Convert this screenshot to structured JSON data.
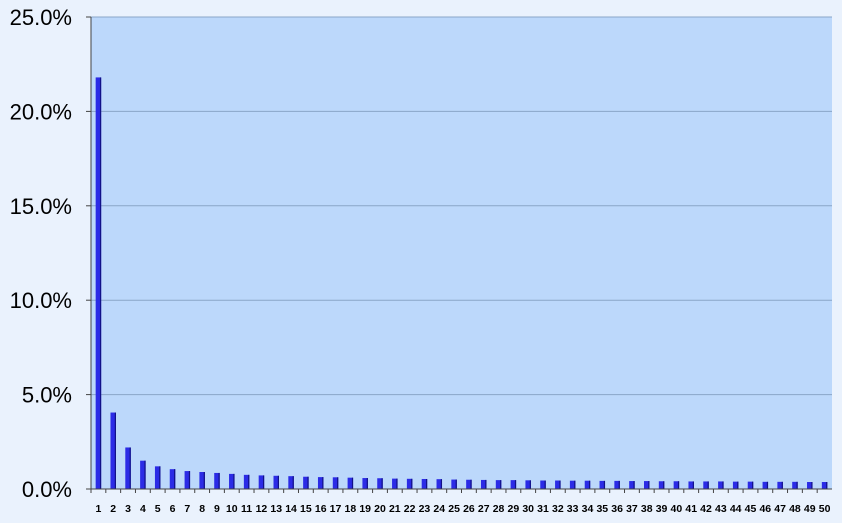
{
  "chart_data": {
    "type": "bar",
    "title": "",
    "xlabel": "",
    "ylabel": "",
    "ylim": [
      0,
      25
    ],
    "y_tick_values": [
      0,
      5,
      10,
      15,
      20,
      25
    ],
    "y_tick_labels": [
      "0.0%",
      "5.0%",
      "10.0%",
      "15.0%",
      "20.0%",
      "25.0%"
    ],
    "grid": "horizontal",
    "legend": "none",
    "categories": [
      "1",
      "2",
      "3",
      "4",
      "5",
      "6",
      "7",
      "8",
      "9",
      "10",
      "11",
      "12",
      "13",
      "14",
      "15",
      "16",
      "17",
      "18",
      "19",
      "20",
      "21",
      "22",
      "23",
      "24",
      "25",
      "26",
      "27",
      "28",
      "29",
      "30",
      "31",
      "32",
      "33",
      "34",
      "35",
      "36",
      "37",
      "38",
      "39",
      "40",
      "41",
      "42",
      "43",
      "44",
      "45",
      "46",
      "47",
      "48",
      "49",
      "50"
    ],
    "values": [
      21.8,
      4.05,
      2.2,
      1.5,
      1.2,
      1.05,
      0.95,
      0.9,
      0.85,
      0.8,
      0.75,
      0.72,
      0.7,
      0.68,
      0.65,
      0.63,
      0.62,
      0.6,
      0.58,
      0.57,
      0.55,
      0.54,
      0.53,
      0.52,
      0.5,
      0.49,
      0.48,
      0.47,
      0.47,
      0.46,
      0.45,
      0.45,
      0.44,
      0.44,
      0.43,
      0.43,
      0.42,
      0.42,
      0.41,
      0.41,
      0.4,
      0.4,
      0.4,
      0.39,
      0.39,
      0.38,
      0.38,
      0.38,
      0.37,
      0.37
    ],
    "colors": {
      "plot_background": "#bcd8fb",
      "page_background": "#eaf2fd",
      "bar": "#2b2be6",
      "bar_shade": "#111188",
      "gridline": "#8aa6c8",
      "axis": "#444444"
    }
  }
}
